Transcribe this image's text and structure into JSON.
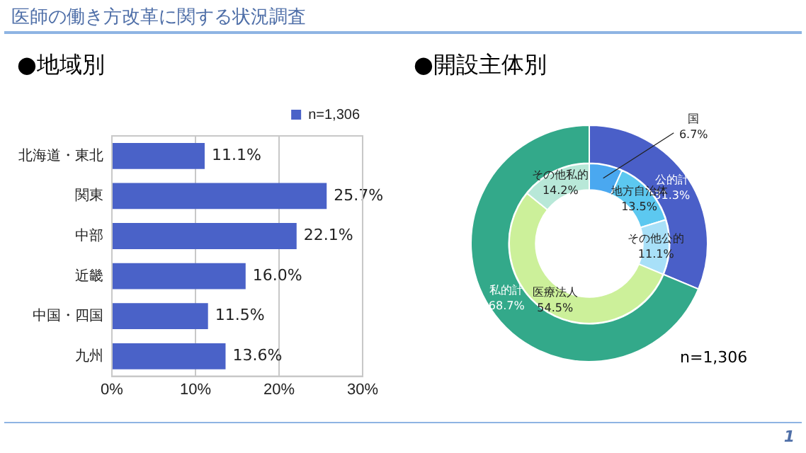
{
  "chart_data": [
    {
      "type": "bar",
      "title": "●地域別",
      "orientation": "horizontal",
      "categories": [
        "北海道・東北",
        "関東",
        "中部",
        "近畿",
        "中国・四国",
        "九州"
      ],
      "series": [
        {
          "name": "n=1,306",
          "color": "#4a62c8",
          "values": [
            11.1,
            25.7,
            22.1,
            16.0,
            11.5,
            13.6
          ],
          "value_labels": [
            "11.1%",
            "25.7%",
            "22.1%",
            "16.0%",
            "11.5%",
            "13.6%"
          ]
        }
      ],
      "xlim": [
        0,
        30
      ],
      "xticks": [
        {
          "value": 0,
          "label": "0%"
        },
        {
          "value": 10,
          "label": "10%"
        },
        {
          "value": 20,
          "label": "20%"
        },
        {
          "value": 30,
          "label": "30%"
        }
      ],
      "grid": "x",
      "legend": "top right",
      "annotations": [
        "医師の働き方改革に関する状況調査",
        "1"
      ]
    },
    {
      "type": "donut",
      "title": "●開設主体別",
      "categories": [
        "公的計",
        "私的計"
      ],
      "values": [
        31.3,
        68.7
      ],
      "colors": [
        "#4a5fc8",
        "#33a98a"
      ],
      "value_labels": [
        "31.3%",
        "68.7%"
      ],
      "annotations": [
        "n=1,306"
      ]
    },
    {
      "type": "donut",
      "categories": [
        "国",
        "地方自治体",
        "その他公的",
        "医療法人",
        "その他私的"
      ],
      "values": [
        6.7,
        13.5,
        11.1,
        54.5,
        14.2
      ],
      "colors": [
        "#4aa8f0",
        "#5cc8f0",
        "#a8e0f8",
        "#ccf09a",
        "#b8e8d8"
      ],
      "value_labels": [
        "6.7%",
        "13.5%",
        "11.1%",
        "54.5%",
        "14.2%"
      ]
    }
  ]
}
